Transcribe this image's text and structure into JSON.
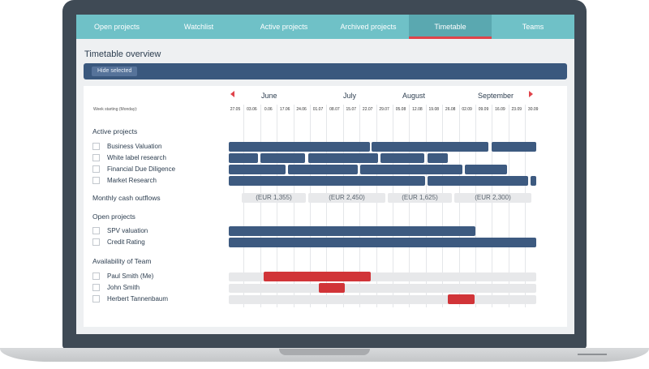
{
  "tabs": [
    "Open projects",
    "Watchlist",
    "Active projects",
    "Archived projects",
    "Timetable",
    "Teams"
  ],
  "overview_title": "Timetable overview",
  "toolbar": {
    "hide_selected": "Hide selected"
  },
  "months": [
    "June",
    "July",
    "August",
    "September"
  ],
  "week_caption": "Week starting (Monday):",
  "weeks": [
    "27.05",
    "03.06",
    "0.06",
    "17.06",
    "24.06",
    "01.07",
    "08.07",
    "15.07",
    "22.07",
    "29.07",
    "05.08",
    "12.08",
    "19.08",
    "26.08",
    "02.09",
    "09.09",
    "16.09",
    "23.09",
    "30.09"
  ],
  "sections": {
    "active": "Active projects",
    "cash": "Monthly cash outflows",
    "open": "Open projects",
    "team": "Availability of Team"
  },
  "active_projects": [
    "Business Valuation",
    "White label research",
    "Financial Due Diligence",
    "Market Research"
  ],
  "cash_outflows": [
    "(EUR 1,355)",
    "(EUR 2,450)",
    "(EUR 1,625)",
    "(EUR 2,300)"
  ],
  "open_projects": [
    "SPV valuation",
    "Credit Rating"
  ],
  "team": [
    "Paul Smith (Me)",
    "John Smith",
    "Herbert Tannenbaum"
  ],
  "colors": {
    "tab_bar": "#6fc1c7",
    "active_tab_underline": "#e0434a",
    "project_bar": "#3d5a80",
    "availability": "#d13438",
    "toolbar": "#3a587e"
  }
}
